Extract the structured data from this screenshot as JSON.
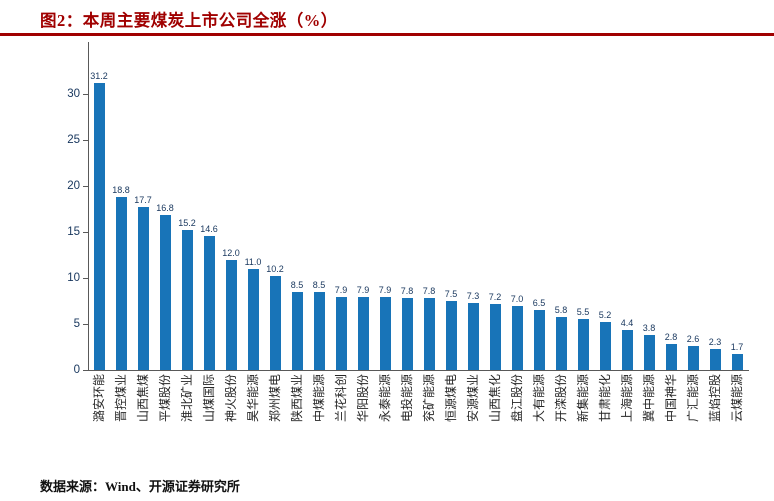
{
  "header": {
    "title": "图2：本周主要煤炭上市公司全涨（%）"
  },
  "footer": {
    "source": "数据来源：Wind、开源证券研究所"
  },
  "colors": {
    "accent_red": "#A00000",
    "bar_blue": "#1874B8",
    "value_label": "#17365D",
    "axis": "#595959",
    "category_label": "#262626"
  },
  "chart_data": {
    "type": "bar",
    "title": "本周主要煤炭上市公司全涨（%）",
    "xlabel": "",
    "ylabel": "",
    "ylim": [
      0,
      35
    ],
    "yticks": [
      0,
      5,
      10,
      15,
      20,
      25,
      30
    ],
    "grid": false,
    "legend_position": "none",
    "bar_color": "#1874B8",
    "value_label_decimals": 1,
    "categories": [
      "潞安环能",
      "晋控煤业",
      "山西焦煤",
      "平煤股份",
      "淮北矿业",
      "山煤国际",
      "神火股份",
      "昊华能源",
      "郑州煤电",
      "陕西煤业",
      "中煤能源",
      "兰花科创",
      "华阳股份",
      "永泰能源",
      "电投能源",
      "兖矿能源",
      "恒源煤电",
      "安源煤业",
      "山西焦化",
      "盘江股份",
      "大有能源",
      "开滦股份",
      "新集能源",
      "甘肃能化",
      "上海能源",
      "冀中能源",
      "中国神华",
      "广汇能源",
      "蓝焰控股",
      "云煤能源"
    ],
    "values": [
      31.2,
      18.8,
      17.7,
      16.8,
      15.2,
      14.6,
      12.0,
      11.0,
      10.2,
      8.5,
      8.5,
      7.9,
      7.9,
      7.9,
      7.8,
      7.8,
      7.5,
      7.3,
      7.2,
      7.0,
      6.5,
      5.8,
      5.5,
      5.2,
      4.4,
      3.8,
      2.8,
      2.6,
      2.3,
      1.7
    ]
  }
}
